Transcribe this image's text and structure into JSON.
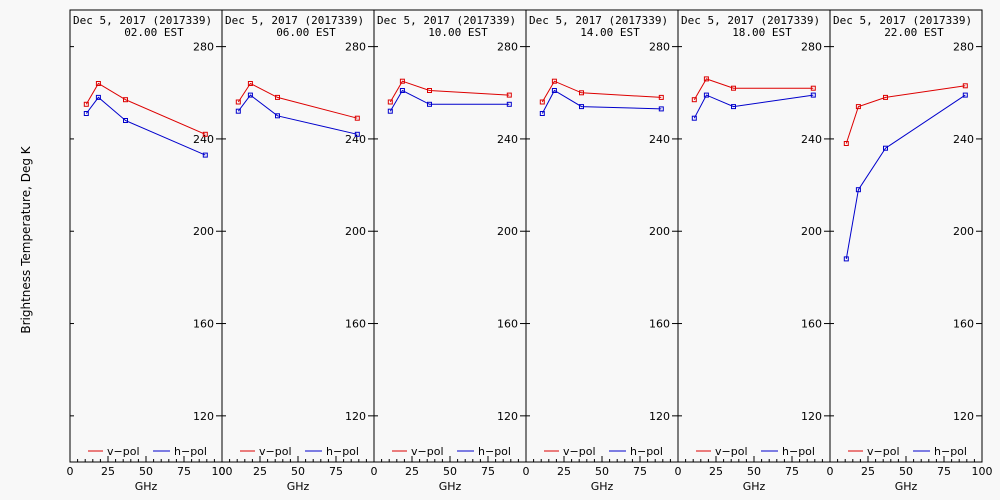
{
  "figure": {
    "ylabel": "Brightness Temperature, Deg K",
    "legend": {
      "v_label": "v−pol",
      "h_label": "h−pol",
      "v_color": "#dd0000",
      "h_color": "#0000cc"
    }
  },
  "chart_data": [
    {
      "type": "line",
      "title": "Dec  5, 2017 (2017339)",
      "subtitle": "02.00 EST",
      "xlabel": "GHz",
      "ylabel": "Brightness Temperature, Deg K",
      "xlim": [
        0,
        100
      ],
      "ylim": [
        100,
        295
      ],
      "xticks": [
        0,
        25,
        50,
        75,
        100
      ],
      "xtick_labels": [
        "0",
        "25",
        "50",
        "75",
        "100"
      ],
      "yticks": [
        120,
        160,
        200,
        240,
        280
      ],
      "legend_position": "bottom",
      "x": [
        10.7,
        18.7,
        36.5,
        89
      ],
      "series": [
        {
          "name": "v-pol",
          "values": [
            255,
            264,
            257,
            242
          ]
        },
        {
          "name": "h-pol",
          "values": [
            251,
            258,
            248,
            233
          ]
        }
      ]
    },
    {
      "type": "line",
      "title": "Dec  5, 2017 (2017339)",
      "subtitle": "06.00 EST",
      "xlabel": "GHz",
      "xlim": [
        0,
        100
      ],
      "ylim": [
        100,
        295
      ],
      "xticks": [
        0,
        25,
        50,
        75
      ],
      "xtick_labels": [
        "0",
        "25",
        "50",
        "75"
      ],
      "yticks": [
        120,
        160,
        200,
        240,
        280
      ],
      "legend_position": "bottom",
      "x": [
        10.7,
        18.7,
        36.5,
        89
      ],
      "series": [
        {
          "name": "v-pol",
          "values": [
            256,
            264,
            258,
            249
          ]
        },
        {
          "name": "h-pol",
          "values": [
            252,
            259,
            250,
            242
          ]
        }
      ]
    },
    {
      "type": "line",
      "title": "Dec  5, 2017 (2017339)",
      "subtitle": "10.00 EST",
      "xlabel": "GHz",
      "xlim": [
        0,
        100
      ],
      "ylim": [
        100,
        295
      ],
      "xticks": [
        0,
        25,
        50,
        75
      ],
      "xtick_labels": [
        "0",
        "25",
        "50",
        "75"
      ],
      "yticks": [
        120,
        160,
        200,
        240,
        280
      ],
      "legend_position": "bottom",
      "x": [
        10.7,
        18.7,
        36.5,
        89
      ],
      "series": [
        {
          "name": "v-pol",
          "values": [
            256,
            265,
            261,
            259
          ]
        },
        {
          "name": "h-pol",
          "values": [
            252,
            261,
            255,
            255
          ]
        }
      ]
    },
    {
      "type": "line",
      "title": "Dec  5, 2017 (2017339)",
      "subtitle": "14.00 EST",
      "xlabel": "GHz",
      "xlim": [
        0,
        100
      ],
      "ylim": [
        100,
        295
      ],
      "xticks": [
        0,
        25,
        50,
        75
      ],
      "xtick_labels": [
        "0",
        "25",
        "50",
        "75"
      ],
      "yticks": [
        120,
        160,
        200,
        240,
        280
      ],
      "legend_position": "bottom",
      "x": [
        10.7,
        18.7,
        36.5,
        89
      ],
      "series": [
        {
          "name": "v-pol",
          "values": [
            256,
            265,
            260,
            258
          ]
        },
        {
          "name": "h-pol",
          "values": [
            251,
            261,
            254,
            253
          ]
        }
      ]
    },
    {
      "type": "line",
      "title": "Dec  5, 2017 (2017339)",
      "subtitle": "18.00 EST",
      "xlabel": "GHz",
      "xlim": [
        0,
        100
      ],
      "ylim": [
        100,
        295
      ],
      "xticks": [
        0,
        25,
        50,
        75
      ],
      "xtick_labels": [
        "0",
        "25",
        "50",
        "75"
      ],
      "yticks": [
        120,
        160,
        200,
        240,
        280
      ],
      "legend_position": "bottom",
      "x": [
        10.7,
        18.7,
        36.5,
        89
      ],
      "series": [
        {
          "name": "v-pol",
          "values": [
            257,
            266,
            262,
            262
          ]
        },
        {
          "name": "h-pol",
          "values": [
            249,
            259,
            254,
            259
          ]
        }
      ]
    },
    {
      "type": "line",
      "title": "Dec  5, 2017 (2017339)",
      "subtitle": "22.00 EST",
      "xlabel": "GHz",
      "xlim": [
        0,
        100
      ],
      "ylim": [
        100,
        295
      ],
      "xticks": [
        0,
        25,
        50,
        75,
        100
      ],
      "xtick_labels": [
        "0",
        "25",
        "50",
        "75",
        "100"
      ],
      "yticks": [
        120,
        160,
        200,
        240,
        280
      ],
      "legend_position": "bottom",
      "x": [
        10.7,
        18.7,
        36.5,
        89
      ],
      "series": [
        {
          "name": "v-pol",
          "values": [
            238,
            254,
            258,
            263
          ]
        },
        {
          "name": "h-pol",
          "values": [
            188,
            218,
            236,
            259
          ]
        }
      ]
    }
  ]
}
